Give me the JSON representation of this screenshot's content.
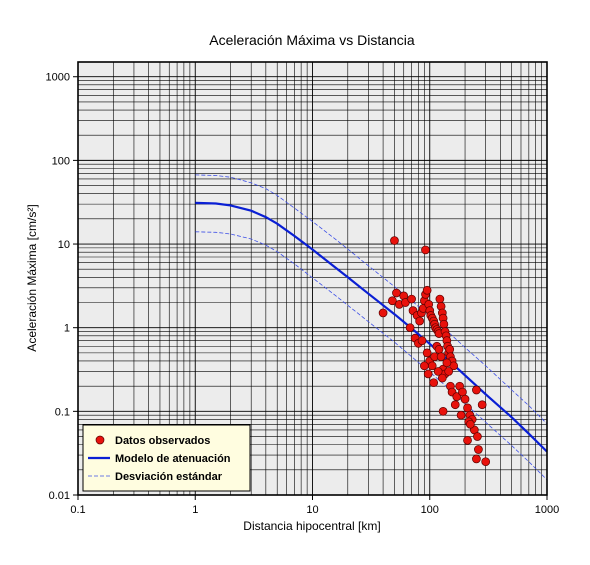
{
  "chart_data": {
    "type": "scatter",
    "title": "Aceleración Máxima vs Distancia",
    "xlabel": "Distancia hipocentral [km]",
    "ylabel": "Aceleración Máxima [cm/s²]",
    "xscale": "log",
    "yscale": "log",
    "xlim": [
      0.1,
      1000
    ],
    "ylim": [
      0.01,
      1500
    ],
    "grid": true,
    "x_ticks": [
      "0.1",
      "1",
      "10",
      "100",
      "1000"
    ],
    "y_ticks": [
      "0.01",
      "0.1",
      "1",
      "10",
      "100",
      "1000"
    ],
    "legend": {
      "position": "bottom-left",
      "entries": [
        "Datos observados",
        "Modelo de atenuación",
        "Desviación estándar"
      ]
    },
    "series": [
      {
        "name": "Datos observados",
        "kind": "scatter",
        "color": "#e8120c",
        "points": [
          [
            50,
            11
          ],
          [
            92,
            8.5
          ],
          [
            52,
            2.6
          ],
          [
            60,
            2.4
          ],
          [
            48,
            2.1
          ],
          [
            55,
            1.9
          ],
          [
            40,
            1.5
          ],
          [
            62,
            2.0
          ],
          [
            70,
            2.2
          ],
          [
            72,
            1.6
          ],
          [
            78,
            1.4
          ],
          [
            82,
            1.2
          ],
          [
            85,
            1.5
          ],
          [
            88,
            1.7
          ],
          [
            90,
            2.1
          ],
          [
            92,
            2.5
          ],
          [
            95,
            2.8
          ],
          [
            98,
            1.9
          ],
          [
            100,
            1.6
          ],
          [
            102,
            1.4
          ],
          [
            105,
            1.3
          ],
          [
            108,
            1.2
          ],
          [
            110,
            1.1
          ],
          [
            112,
            1.0
          ],
          [
            115,
            0.95
          ],
          [
            118,
            0.9
          ],
          [
            120,
            0.85
          ],
          [
            122,
            2.2
          ],
          [
            125,
            1.8
          ],
          [
            128,
            1.5
          ],
          [
            130,
            1.3
          ],
          [
            132,
            1.1
          ],
          [
            135,
            0.9
          ],
          [
            138,
            0.8
          ],
          [
            140,
            0.7
          ],
          [
            142,
            0.6
          ],
          [
            145,
            0.5
          ],
          [
            148,
            0.55
          ],
          [
            150,
            0.45
          ],
          [
            155,
            0.4
          ],
          [
            160,
            0.35
          ],
          [
            68,
            1.0
          ],
          [
            75,
            0.75
          ],
          [
            80,
            0.65
          ],
          [
            86,
            0.7
          ],
          [
            95,
            0.5
          ],
          [
            100,
            0.4
          ],
          [
            105,
            0.35
          ],
          [
            110,
            0.45
          ],
          [
            115,
            0.6
          ],
          [
            120,
            0.55
          ],
          [
            125,
            0.45
          ],
          [
            130,
            0.32
          ],
          [
            135,
            0.28
          ],
          [
            140,
            0.38
          ],
          [
            145,
            0.3
          ],
          [
            90,
            0.35
          ],
          [
            97,
            0.28
          ],
          [
            108,
            0.22
          ],
          [
            118,
            0.3
          ],
          [
            128,
            0.25
          ],
          [
            150,
            0.2
          ],
          [
            155,
            0.17
          ],
          [
            165,
            0.12
          ],
          [
            170,
            0.15
          ],
          [
            180,
            0.2
          ],
          [
            190,
            0.17
          ],
          [
            200,
            0.14
          ],
          [
            210,
            0.11
          ],
          [
            220,
            0.09
          ],
          [
            230,
            0.08
          ],
          [
            250,
            0.18
          ],
          [
            280,
            0.12
          ],
          [
            300,
            0.025
          ],
          [
            130,
            0.1
          ],
          [
            185,
            0.09
          ],
          [
            215,
            0.075
          ],
          [
            240,
            0.06
          ],
          [
            255,
            0.05
          ],
          [
            260,
            0.035
          ],
          [
            250,
            0.027
          ],
          [
            210,
            0.045
          ],
          [
            222,
            0.07
          ]
        ]
      },
      {
        "name": "Modelo de atenuación",
        "kind": "line",
        "color": "#0a1fd4",
        "style": "solid",
        "points": [
          [
            1,
            31
          ],
          [
            1.5,
            30.5
          ],
          [
            2,
            29
          ],
          [
            3,
            25
          ],
          [
            4,
            21
          ],
          [
            5,
            17.5
          ],
          [
            7,
            12.5
          ],
          [
            10,
            8.6
          ],
          [
            15,
            5.5
          ],
          [
            20,
            4.0
          ],
          [
            30,
            2.55
          ],
          [
            50,
            1.45
          ],
          [
            70,
            0.98
          ],
          [
            100,
            0.64
          ],
          [
            150,
            0.39
          ],
          [
            200,
            0.27
          ],
          [
            300,
            0.16
          ],
          [
            500,
            0.085
          ],
          [
            700,
            0.054
          ],
          [
            1000,
            0.033
          ]
        ]
      },
      {
        "name": "Desviación estándar",
        "kind": "line",
        "color": "#3d4fe6",
        "style": "dashed",
        "points": [
          [
            1,
            67
          ],
          [
            1.5,
            66
          ],
          [
            2,
            63
          ],
          [
            3,
            54
          ],
          [
            4,
            46
          ],
          [
            5,
            38
          ],
          [
            7,
            27
          ],
          [
            10,
            18.6
          ],
          [
            15,
            12
          ],
          [
            20,
            8.7
          ],
          [
            30,
            5.5
          ],
          [
            50,
            3.1
          ],
          [
            70,
            2.1
          ],
          [
            100,
            1.38
          ],
          [
            150,
            0.84
          ],
          [
            200,
            0.58
          ],
          [
            300,
            0.35
          ],
          [
            500,
            0.18
          ],
          [
            700,
            0.117
          ],
          [
            1000,
            0.071
          ]
        ]
      },
      {
        "name": "",
        "kind": "line",
        "color": "#3d4fe6",
        "style": "dashed",
        "points": [
          [
            1,
            14
          ],
          [
            1.5,
            13.8
          ],
          [
            2,
            13.2
          ],
          [
            3,
            11.5
          ],
          [
            4,
            9.7
          ],
          [
            5,
            8.1
          ],
          [
            7,
            5.8
          ],
          [
            10,
            3.95
          ],
          [
            15,
            2.55
          ],
          [
            20,
            1.85
          ],
          [
            30,
            1.18
          ],
          [
            50,
            0.67
          ],
          [
            70,
            0.45
          ],
          [
            100,
            0.295
          ],
          [
            150,
            0.18
          ],
          [
            200,
            0.124
          ],
          [
            300,
            0.074
          ],
          [
            500,
            0.039
          ],
          [
            700,
            0.025
          ],
          [
            1000,
            0.0152
          ]
        ]
      }
    ]
  }
}
